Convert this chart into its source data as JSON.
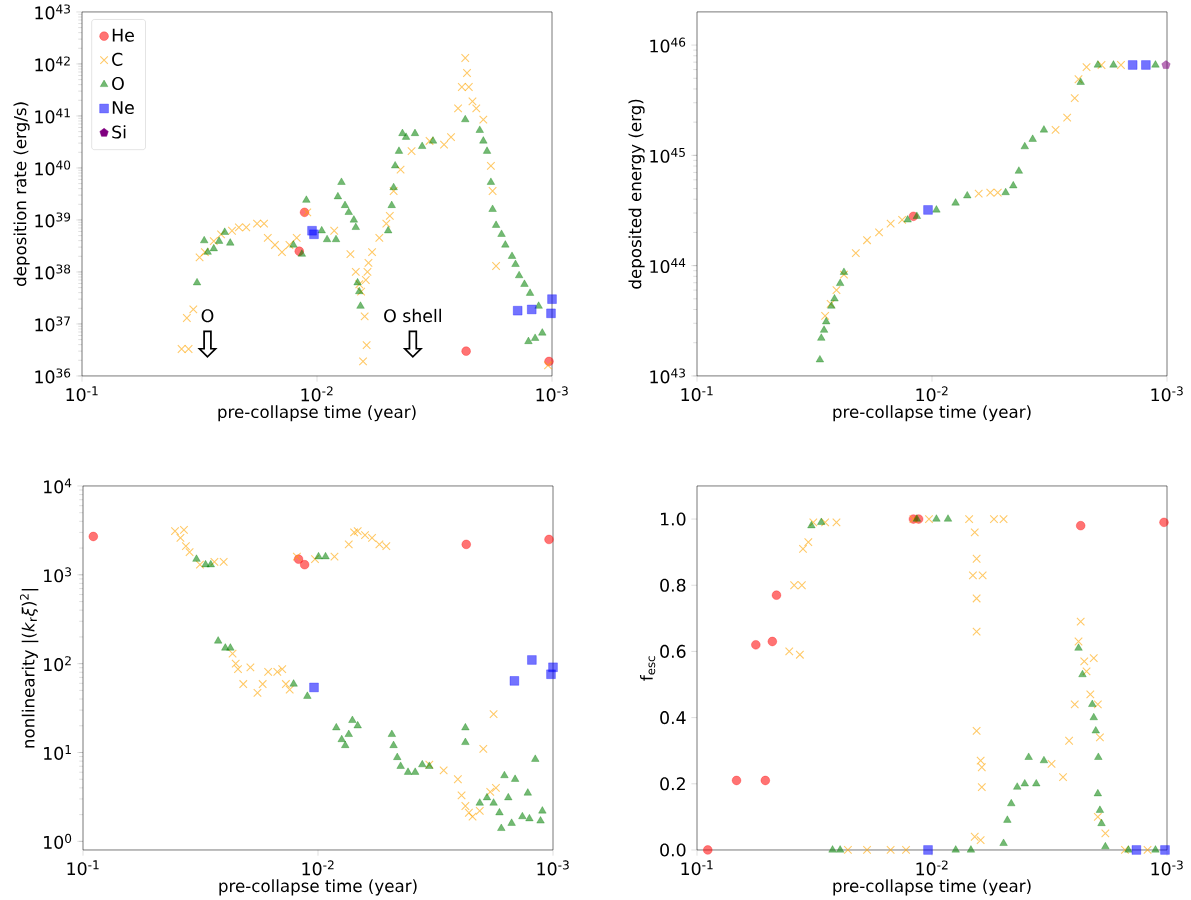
{
  "chart_data": [
    {
      "type": "scatter",
      "xlabel": "pre-collapse time (year)",
      "ylabel": "deposition rate (erg/s)",
      "log": "xy",
      "legend": "top left",
      "xlim": [
        0.1,
        0.001
      ],
      "xticks": [
        {
          "value": 0.1,
          "label": "10$^{-1}$"
        },
        {
          "value": 0.01,
          "label": "10$^{-2}$"
        },
        {
          "value": 0.001,
          "label": "10$^{-3}$"
        }
      ],
      "ylim": [
        1e+36,
        1e+43
      ],
      "yticks": [
        {
          "value": 1e+36,
          "label": "10$^{36}$"
        },
        {
          "value": 1e+37,
          "label": "10$^{37}$"
        },
        {
          "value": 1e+38,
          "label": "10$^{38}$"
        },
        {
          "value": 1e+39,
          "label": "10$^{39}$"
        },
        {
          "value": 1e+40,
          "label": "10$^{40}$"
        },
        {
          "value": 1e+41,
          "label": "10$^{41}$"
        },
        {
          "value": 1e+42,
          "label": "10$^{42}$"
        },
        {
          "value": 1e+43,
          "label": "10$^{43}$"
        }
      ],
      "annotations": [
        "O",
        "O shell"
      ],
      "series": [
        {
          "name": "He",
          "color": "#ff0000",
          "marker": "circle",
          "x": [
            0.0113,
            0.0119,
            0.00232,
            0.00103
          ],
          "values": [
            1.4e+39,
            2.5e+38,
            3e+36,
            1.9e+36
          ]
        },
        {
          "name": "C",
          "color": "#ffa500",
          "marker": "cross",
          "x": [
            0.0377,
            0.0352,
            0.0358,
            0.0336,
            0.0316,
            0.03,
            0.0275,
            0.0256,
            0.023,
            0.0215,
            0.02,
            0.018,
            0.0168,
            0.0162,
            0.0151,
            0.0141,
            0.0131,
            0.0122,
            0.011,
            0.00845,
            0.00721,
            0.00684,
            0.00661,
            0.00649,
            0.00637,
            0.00627,
            0.00615,
            0.00604,
            0.0061,
            0.0062,
            0.00583,
            0.00543,
            0.00507,
            0.0049,
            0.00472,
            0.00441,
            0.00396,
            0.00332,
            0.00288,
            0.00269,
            0.00251,
            0.00242,
            0.00234,
            0.0023,
            0.00226,
            0.00218,
            0.0021,
            0.00196,
            0.00182,
            0.00179,
            0.00173,
            0.00104
          ],
          "values": [
            3.3e+36,
            3.3e+36,
            1.3e+37,
            1.9e+37,
            1.9e+38,
            2.4e+38,
            3.9e+38,
            5.3e+38,
            6.2e+38,
            7.2e+38,
            7.2e+38,
            8.5e+38,
            8.5e+38,
            4.5e+38,
            3.3e+38,
            2.4e+38,
            3.3e+38,
            4.5e+38,
            1.4e+39,
            6.2e+38,
            2.2e+38,
            1e+38,
            5.8e+37,
            4.2e+37,
            1.9e+36,
            1.4e+37,
            3.9e+36,
            1.5e+38,
            1e+38,
            7e+37,
            2.4e+38,
            4.5e+38,
            8.5e+38,
            1.2e+39,
            3.6e+39,
            9.3e+39,
            2.1e+40,
            3.3e+40,
            2.8e+40,
            3.9e+40,
            1.4e+41,
            3.6e+41,
            1.3e+42,
            6.7e+41,
            3.6e+41,
            1.9e+41,
            1.4e+41,
            8.5e+40,
            1.1e+40,
            3.6e+39,
            1.3e+38,
            1.6e+36
          ]
        },
        {
          "name": "O",
          "color": "#008000",
          "marker": "triangle",
          "x": [
            0.0324,
            0.0302,
            0.0292,
            0.0275,
            0.0261,
            0.0247,
            0.0234,
            0.0126,
            0.0116,
            0.0111,
            0.00955,
            0.00906,
            0.0083,
            0.00787,
            0.00815,
            0.0076,
            0.00733,
            0.00697,
            0.00684,
            0.00672,
            0.00661,
            0.00653,
            0.00498,
            0.00481,
            0.00472,
            0.00465,
            0.00448,
            0.00433,
            0.00418,
            0.00383,
            0.00357,
            0.00321,
            0.00234,
            0.00203,
            0.00196,
            0.00189,
            0.00182,
            0.00179,
            0.00173,
            0.00164,
            0.00158,
            0.00148,
            0.00143,
            0.00138,
            0.00131,
            0.00124,
            0.00114,
            0.00126,
            0.00118,
            0.0011
          ],
          "values": [
            6.2e+37,
            4e+38,
            2.4e+38,
            2.8e+38,
            3.9e+38,
            5.8e+38,
            3.6e+38,
            3.3e+38,
            2.2e+38,
            2.4e+39,
            6.2e+38,
            4.2e+38,
            4.2e+38,
            5.3e+39,
            2.8e+39,
            1.9e+39,
            1.4e+39,
            1e+39,
            7.2e+38,
            6.2e+37,
            4.2e+37,
            2.2e+37,
            6.2e+38,
            1.9e+39,
            4.2e+39,
            1.1e+40,
            2.1e+40,
            4.6e+40,
            3.9e+40,
            4.6e+40,
            2.6e+40,
            3.3e+40,
            8.5e+40,
            5.3e+40,
            3.3e+40,
            2.1e+40,
            5.3e+39,
            1.6e+39,
            7.9e+38,
            5.3e+38,
            3.3e+38,
            2e+38,
            1.4e+38,
            8.5e+37,
            5.8e+37,
            3.9e+37,
            2.2e+37,
            4.6e+36,
            5.3e+36,
            6.7e+36
          ]
        },
        {
          "name": "Ne",
          "color": "#0000ff",
          "marker": "square",
          "x": [
            0.0105,
            0.0103,
            0.0014,
            0.00122,
            0.00101,
            0.001
          ],
          "values": [
            6.2e+38,
            5.3e+38,
            1.8e+37,
            1.9e+37,
            1.6e+37,
            3e+37
          ]
        },
        {
          "name": "Si",
          "color": "#800080"
        }
      ]
    },
    {
      "type": "scatter",
      "xlabel": "pre-collapse time (year)",
      "ylabel": "deposited energy (erg)",
      "log": "xy",
      "xlim": [
        0.1,
        0.001
      ],
      "xticks": [
        {
          "value": 0.1,
          "label": "10$^{-1}$"
        },
        {
          "value": 0.01,
          "label": "10$^{-2}$"
        },
        {
          "value": 0.001,
          "label": "10$^{-3}$"
        }
      ],
      "ylim": [
        1e+43,
        2e+46
      ],
      "yticks": [
        {
          "value": 1e+43,
          "label": "10$^{43}$"
        },
        {
          "value": 1e+44,
          "label": "10$^{44}$"
        },
        {
          "value": 1e+45,
          "label": "10$^{45}$"
        },
        {
          "value": 1e+46,
          "label": "10$^{46}$"
        }
      ],
      "series": [
        {
          "color": "#ff0000",
          "marker": "circle",
          "x": [
            0.012
          ],
          "values": [
            2.8e+44
          ]
        },
        {
          "color": "#ffa500",
          "marker": "cross",
          "x": [
            0.0285,
            0.027,
            0.0255,
            0.0237,
            0.0211,
            0.0189,
            0.0168,
            0.015,
            0.0134,
            0.00633,
            0.00565,
            0.00525,
            0.00298,
            0.00266,
            0.00247,
            0.00238,
            0.0022,
            0.0019,
            0.00157
          ],
          "values": [
            3.5e+43,
            4.5e+43,
            6e+43,
            8.3e+43,
            1.3e+44,
            1.7e+44,
            2e+44,
            2.4e+44,
            2.6e+44,
            4.5e+44,
            4.6e+44,
            4.6e+44,
            1.7e+45,
            2.2e+45,
            3.3e+45,
            4.9e+45,
            6.3e+45,
            6.6e+45,
            6.6e+45
          ]
        },
        {
          "color": "#008000",
          "marker": "triangle",
          "x": [
            0.03,
            0.0296,
            0.0288,
            0.0282,
            0.0268,
            0.026,
            0.0246,
            0.0237,
            0.0127,
            0.0116,
            0.00958,
            0.00794,
            0.00708,
            0.00486,
            0.00451,
            0.00427,
            0.00403,
            0.00373,
            0.00334,
            0.00233,
            0.00197,
            0.00169,
            0.00112
          ],
          "values": [
            1.4e+43,
            2.2e+43,
            2.6e+43,
            3.1e+43,
            4.3e+43,
            5e+43,
            6.9e+43,
            8.7e+43,
            2.6e+44,
            2.8e+44,
            3.2e+44,
            3.7e+44,
            4.3e+44,
            4.6e+44,
            5.3e+44,
            7.2e+44,
            1.2e+45,
            1.4e+45,
            1.7e+45,
            4.6e+45,
            6.6e+45,
            6.6e+45,
            6.6e+45
          ]
        },
        {
          "color": "#0000ff",
          "marker": "square",
          "x": [
            0.0104,
            0.0014,
            0.00123
          ],
          "values": [
            3.2e+44,
            6.6e+45,
            6.6e+45
          ]
        },
        {
          "color": "#800080",
          "x": [
            0.00101
          ],
          "values": [
            6.6e+45
          ]
        }
      ]
    },
    {
      "type": "scatter",
      "xlabel": "pre-collapse time (year)",
      "ylabel": "nonlinearity |(*k*$_{r}$*ξ*)$^{2}$|",
      "log": "xy",
      "xlim": [
        0.1,
        0.001
      ],
      "xticks": [
        {
          "value": 0.1,
          "label": "10$^{-1}$"
        },
        {
          "value": 0.01,
          "label": "10$^{-2}$"
        },
        {
          "value": 0.001,
          "label": "10$^{-3}$"
        }
      ],
      "ylim": [
        0.8,
        10000
      ],
      "yticks": [
        {
          "value": 1,
          "label": "10$^{0}$"
        },
        {
          "value": 10,
          "label": "10$^{1}$"
        },
        {
          "value": 100,
          "label": "10$^{2}$"
        },
        {
          "value": 1000,
          "label": "10$^{3}$"
        },
        {
          "value": 10000,
          "label": "10$^{4}$"
        }
      ],
      "series": [
        {
          "color": "#ff0000",
          "marker": "circle",
          "x": [
            0.0904,
            0.0121,
            0.0114,
            0.00234,
            0.00104
          ],
          "values": [
            2700,
            1500,
            1300,
            2200,
            2500
          ]
        },
        {
          "color": "#ffa500",
          "marker": "cross",
          "x": [
            0.0406,
            0.0372,
            0.0385,
            0.0365,
            0.0352,
            0.0318,
            0.0276,
            0.0252,
            0.0231,
            0.0224,
            0.0219,
            0.0194,
            0.0208,
            0.0181,
            0.0172,
            0.0163,
            0.0149,
            0.0142,
            0.0137,
            0.0132,
            0.0123,
            0.0103,
            0.00851,
            0.0074,
            0.00702,
            0.00678,
            0.00631,
            0.00589,
            0.00548,
            0.00512,
            0.00336,
            0.00292,
            0.00254,
            0.00245,
            0.00236,
            0.00228,
            0.0022,
            0.00205,
            0.00198,
            0.00185,
            0.00179,
            0.00175
          ],
          "values": [
            3100,
            3200,
            2600,
            2100,
            1800,
            1300,
            1400,
            1400,
            130,
            100,
            87,
            91,
            59,
            47,
            59,
            81,
            81,
            87,
            59,
            51,
            1600,
            1500,
            1600,
            2200,
            3000,
            3100,
            2800,
            2600,
            2200,
            2100,
            7.3,
            6.3,
            5.0,
            3.3,
            2.5,
            2.1,
            1.9,
            2.2,
            11,
            3.6,
            27,
            4.0
          ]
        },
        {
          "color": "#008000",
          "marker": "triangle",
          "x": [
            0.0329,
            0.0301,
            0.0286,
            0.0266,
            0.0248,
            0.0236,
            0.0127,
            0.0111,
            0.00995,
            0.00929,
            0.00836,
            0.00793,
            0.00766,
            0.0074,
            0.00714,
            0.00678,
            0.00485,
            0.00477,
            0.0046,
            0.00445,
            0.00414,
            0.00386,
            0.0036,
            0.00336,
            0.00236,
            0.00236,
            0.00205,
            0.00191,
            0.00179,
            0.00169,
            0.00166,
            0.00161,
            0.00155,
            0.00145,
            0.0015,
            0.00135,
            0.00128,
            0.00126,
            0.00119,
            0.00113,
            0.00111
          ],
          "values": [
            1500,
            1300,
            1300,
            180,
            150,
            150,
            59,
            43,
            1600,
            1600,
            19,
            14,
            12,
            16,
            23,
            20,
            16,
            12,
            8.8,
            7.0,
            6.0,
            6.0,
            7.3,
            7.0,
            19,
            13,
            2.7,
            3.1,
            2.7,
            2.1,
            1.4,
            5.5,
            3.1,
            5.0,
            1.6,
            1.9,
            3.5,
            1.8,
            8.4,
            1.7,
            2.2
          ]
        },
        {
          "color": "#0000ff",
          "marker": "square",
          "x": [
            0.0104,
            0.00146,
            0.00123,
            0.00102,
            0.001
          ],
          "values": [
            54,
            64,
            110,
            76,
            91
          ]
        }
      ]
    },
    {
      "type": "scatter",
      "xlabel": "pre-collapse time (year)",
      "ylabel": "f$_{esc}$",
      "log": "x",
      "xlim": [
        0.1,
        0.001
      ],
      "xticks": [
        {
          "value": 0.1,
          "label": "10$^{-1}$"
        },
        {
          "value": 0.01,
          "label": "10$^{-2}$"
        },
        {
          "value": 0.001,
          "label": "10$^{-3}$"
        }
      ],
      "ylim": [
        0,
        1.1
      ],
      "yticks": [
        {
          "value": 0,
          "label": "0.0"
        },
        0.2,
        0.4,
        0.6,
        0.8,
        {
          "value": 1,
          "label": "1.0"
        }
      ],
      "series": [
        {
          "color": "#ff0000",
          "marker": "circle",
          "x": [
            0.09,
            0.0679,
            0.0562,
            0.0512,
            0.0478,
            0.0459,
            0.012,
            0.0114,
            0.00233,
            0.00103
          ],
          "values": [
            0.0,
            0.21,
            0.62,
            0.21,
            0.63,
            0.77,
            1.0,
            1.0,
            0.98,
            0.99
          ]
        },
        {
          "color": "#ffa500",
          "marker": "cross",
          "x": [
            0.0405,
            0.0365,
            0.0386,
            0.0358,
            0.0354,
            0.0336,
            0.032,
            0.0285,
            0.0255,
            0.0228,
            0.0189,
            0.015,
            0.0129,
            0.012,
            0.0103,
            0.00695,
            0.00658,
            0.0067,
            0.00646,
            0.00646,
            0.00646,
            0.00646,
            0.00621,
            0.00614,
            0.00614,
            0.00609,
            0.00658,
            0.00621,
            0.00545,
            0.00496,
            0.0031,
            0.00277,
            0.00261,
            0.00247,
            0.00238,
            0.00233,
            0.00225,
            0.0022,
            0.00212,
            0.00205,
            0.00197,
            0.00197,
            0.00193,
            0.00183,
            0.00151,
            0.00121
          ],
          "values": [
            0.6,
            0.59,
            0.8,
            0.8,
            0.91,
            0.93,
            0.99,
            0.99,
            0.99,
            0.0,
            0.0,
            0.0,
            0.0,
            1.0,
            1.0,
            1.0,
            0.96,
            0.83,
            0.88,
            0.76,
            0.66,
            0.36,
            0.27,
            0.25,
            0.19,
            0.83,
            0.04,
            0.03,
            1.0,
            1.0,
            0.26,
            0.22,
            0.33,
            0.44,
            0.63,
            0.69,
            0.57,
            0.54,
            0.47,
            0.58,
            0.44,
            0.1,
            0.34,
            0.05,
            0.0,
            0.0
          ]
        },
        {
          "color": "#008000",
          "marker": "triangle",
          "x": [
            0.0326,
            0.0296,
            0.0265,
            0.0246,
            0.0116,
            0.00958,
            0.00855,
            0.00793,
            0.00683,
            0.00496,
            0.00478,
            0.0046,
            0.00434,
            0.00403,
            0.00388,
            0.0036,
            0.00334,
            0.00238,
            0.00229,
            0.00208,
            0.00205,
            0.00201,
            0.00196,
            0.00197,
            0.00193,
            0.0019,
            0.00183,
            0.00146,
            0.00112
          ],
          "values": [
            0.98,
            0.99,
            0.0,
            0.0,
            1.0,
            1.0,
            1.0,
            0.0,
            0.0,
            0.02,
            0.09,
            0.14,
            0.19,
            0.2,
            0.28,
            0.2,
            0.27,
            0.61,
            0.53,
            0.44,
            0.4,
            0.36,
            0.28,
            0.17,
            0.12,
            0.08,
            0.01,
            0.0,
            0.0
          ]
        },
        {
          "color": "#0000ff",
          "marker": "square",
          "x": [
            0.0104,
            0.00135,
            0.00102
          ],
          "values": [
            0.0,
            0.0,
            0.0
          ]
        }
      ]
    }
  ]
}
